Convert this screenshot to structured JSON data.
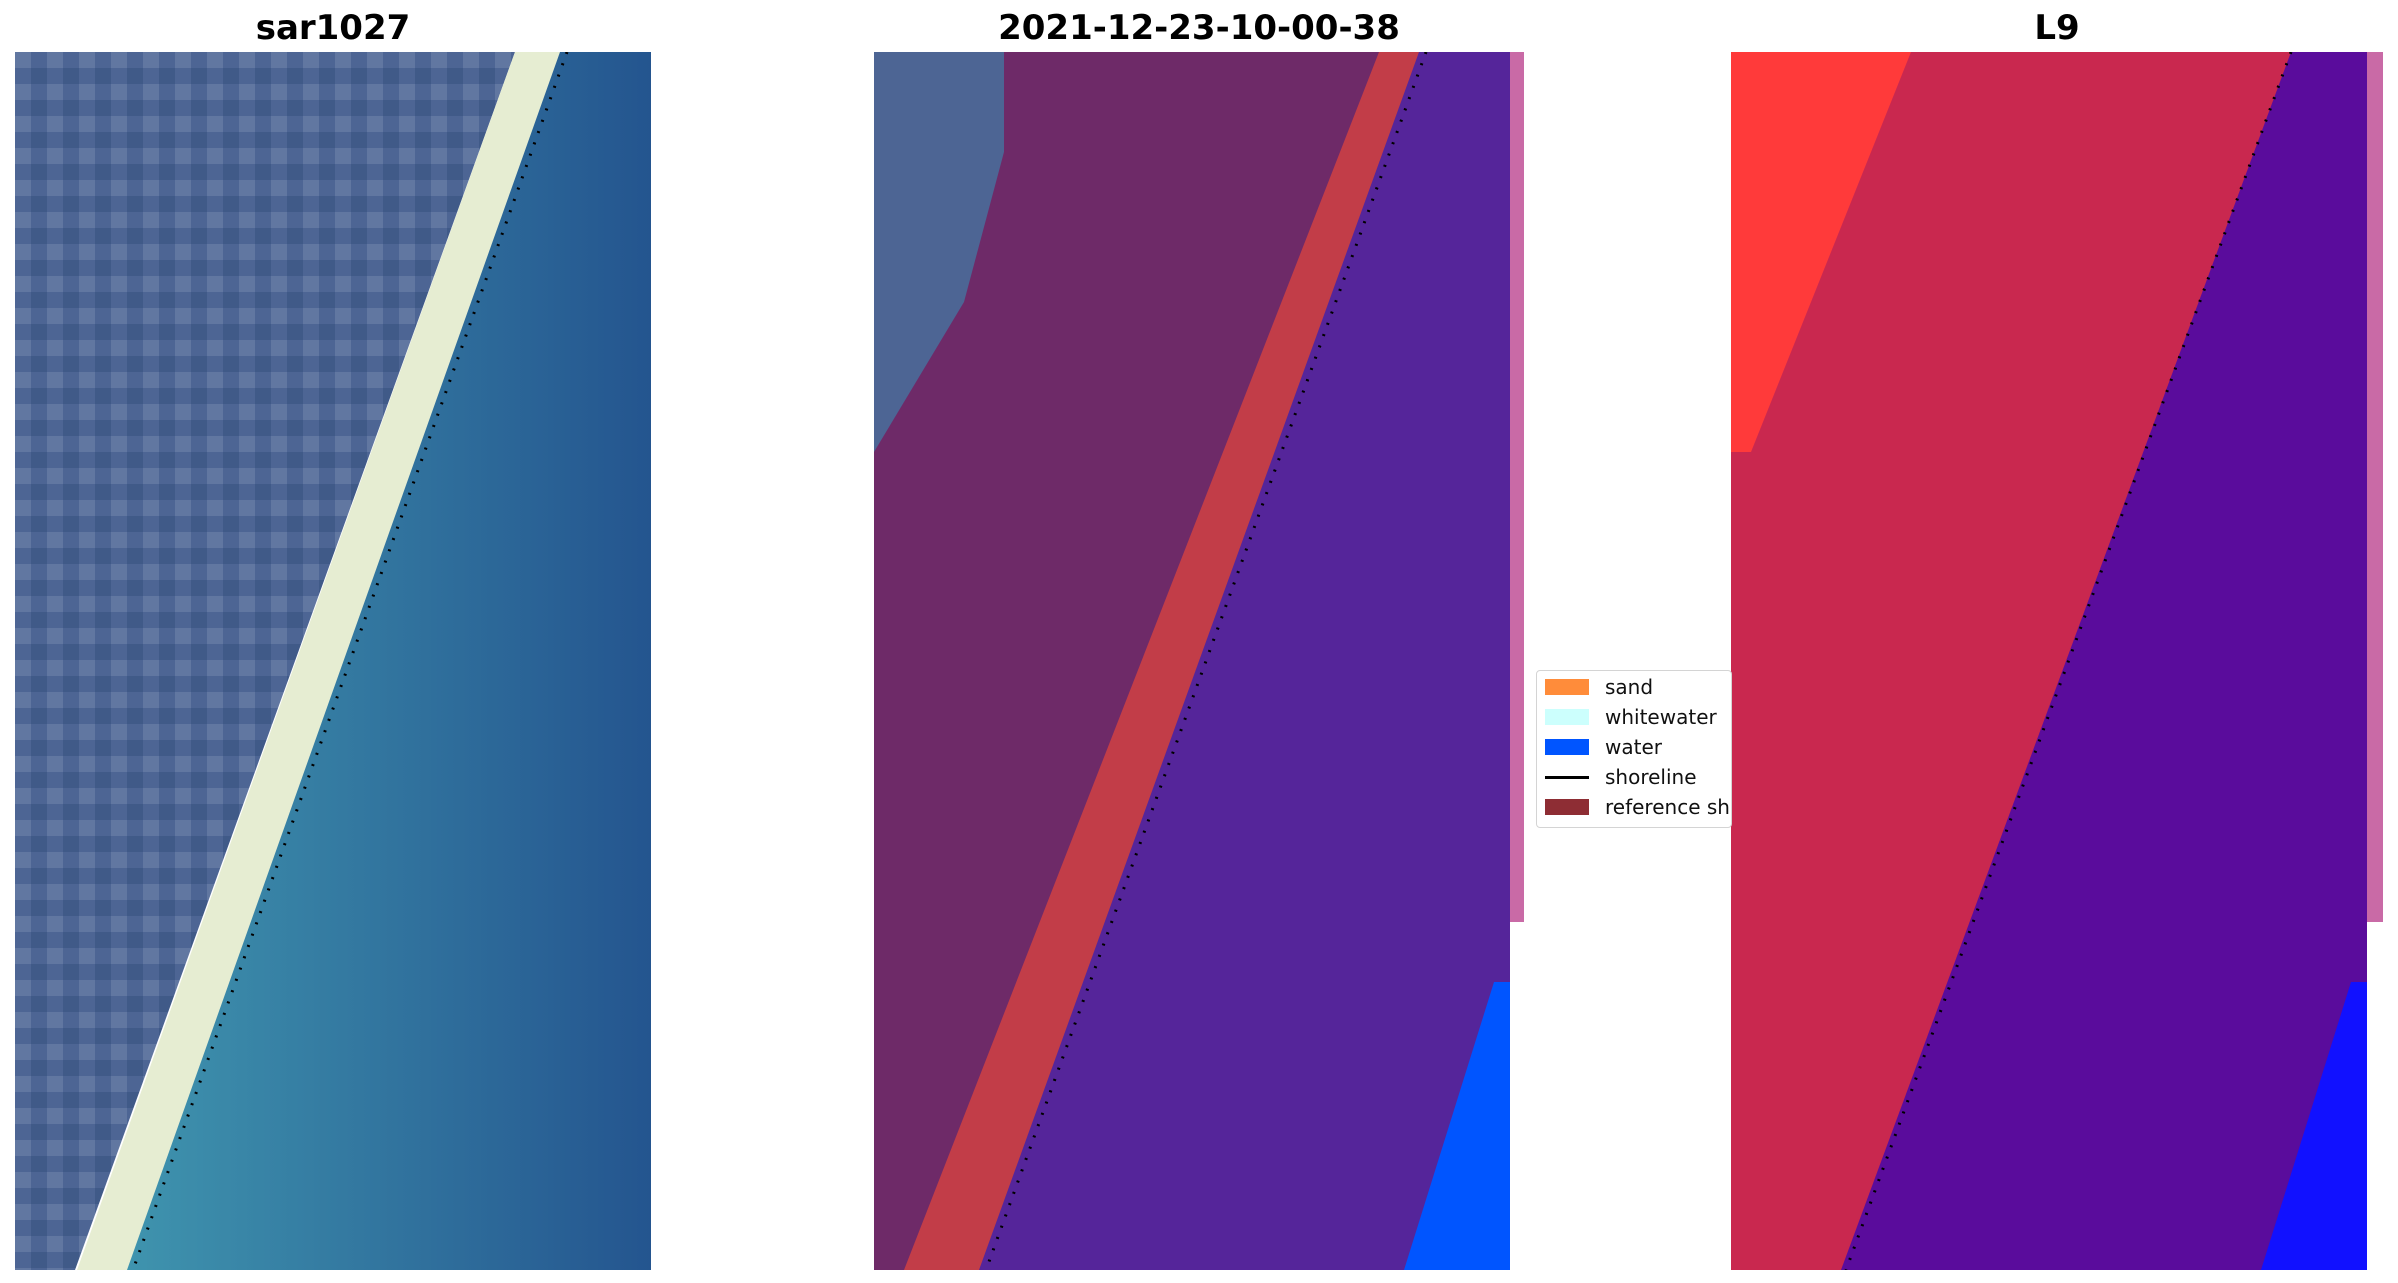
{
  "panels": [
    {
      "title": "sar1027",
      "image": "RGB satellite image of coastline"
    },
    {
      "title": "2021-12-23-10-00-38",
      "image": "classified image overlay"
    },
    {
      "title": "L9",
      "image": "MNDWI index image"
    }
  ],
  "legend": {
    "items": [
      {
        "label": "sand",
        "color": "#ff8c3a"
      },
      {
        "label": "whitewater",
        "color": "#ccfffd"
      },
      {
        "label": "water",
        "color": "#0055ff"
      },
      {
        "label": "shoreline",
        "color": "#000000"
      },
      {
        "label": "reference sh",
        "color": "#8e2d34"
      }
    ]
  },
  "colors": {
    "land_rgb": "#4d6594",
    "sea_rgb": "#2f76a6",
    "beach_rgb": "#e6edd2",
    "land_class": "#6e2a68",
    "sand_class": "#c23d48",
    "water_class": "#55259a",
    "water_blue": "#0055ff",
    "land_index": "#c9284f",
    "land_index_bright": "#ff3a3a",
    "water_index": "#5a0c9c",
    "water_index_blue": "#1111ff",
    "edge_strip": "#c96aa6"
  }
}
